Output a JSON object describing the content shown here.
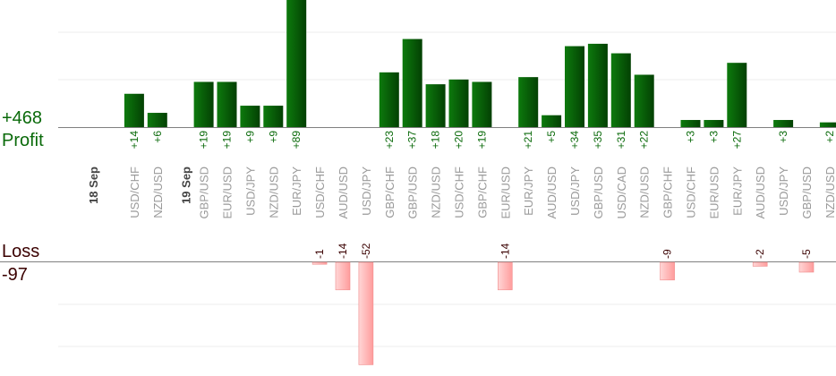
{
  "chart_data": {
    "type": "bar",
    "profit_total": "+468",
    "profit_label": "Profit",
    "loss_label": "Loss",
    "loss_total": "-97",
    "colors": {
      "profit_bar": "#0b6b0b",
      "profit_bar_dark": "#044404",
      "profit_text": "#0a6a0a",
      "loss_bar": "#ffb3b3",
      "loss_bar_edge": "#f08b8b",
      "loss_text": "#3a0000",
      "axis": "#808080",
      "grid": "#eeeeee",
      "category": "#9a9a9a"
    },
    "dates": [
      {
        "label": "18 Sep",
        "slot": 0
      },
      {
        "label": "19 Sep",
        "slot": 4
      }
    ],
    "categories": [
      "USD/CHF",
      "NZD/USD",
      "GBP/USD",
      "EUR/USD",
      "USD/JPY",
      "NZD/USD",
      "EUR/JPY",
      "USD/CHF",
      "AUD/USD",
      "USD/JPY",
      "GBP/CHF",
      "GBP/USD",
      "NZD/USD",
      "USD/CHF",
      "GBP/CHF",
      "EUR/USD",
      "EUR/JPY",
      "AUD/USD",
      "USD/JPY",
      "GBP/USD",
      "USD/CAD",
      "NZD/USD",
      "GBP/CHF",
      "USD/CHF",
      "EUR/USD",
      "EUR/JPY",
      "AUD/USD",
      "USD/JPY",
      "GBP/USD",
      "NZD/USD"
    ],
    "slots": [
      1,
      2,
      4,
      5,
      6,
      7,
      8,
      9,
      10,
      11,
      12,
      13,
      14,
      15,
      16,
      17,
      18,
      19,
      20,
      21,
      22,
      23,
      24,
      25,
      26,
      27,
      28,
      29,
      30,
      31
    ],
    "values": [
      14,
      6,
      19,
      19,
      9,
      9,
      89,
      -1,
      -14,
      -52,
      23,
      37,
      18,
      20,
      19,
      -14,
      21,
      5,
      34,
      35,
      31,
      22,
      -9,
      3,
      3,
      27,
      -2,
      3,
      -5,
      2
    ],
    "labels": [
      "+14",
      "+6",
      "+19",
      "+19",
      "+9",
      "+9",
      "+89",
      "-1",
      "-14",
      "-52",
      "+23",
      "+37",
      "+18",
      "+20",
      "+19",
      "-14",
      "+21",
      "+5",
      "+34",
      "+35",
      "+31",
      "+22",
      "-9",
      "+3",
      "+3",
      "+27",
      "-2",
      "+3",
      "-5",
      "+2"
    ]
  }
}
